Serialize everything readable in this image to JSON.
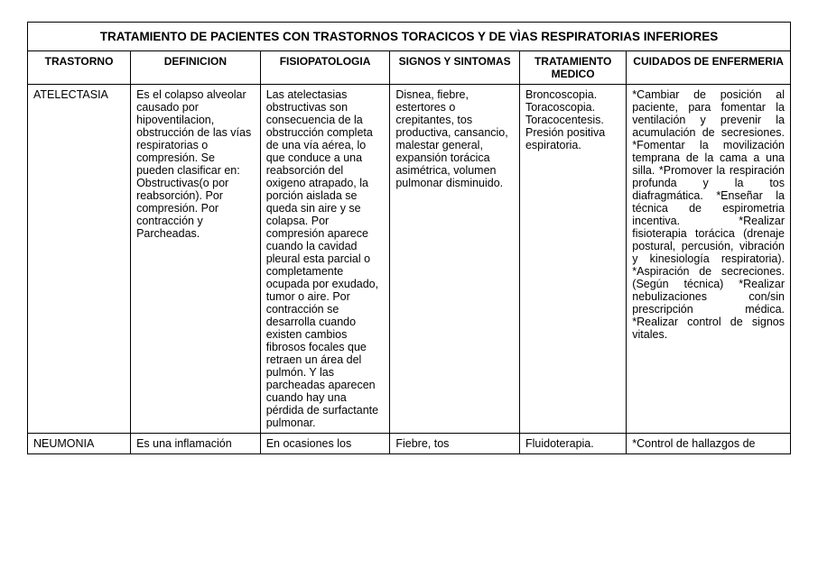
{
  "table": {
    "title": "TRATAMIENTO DE PACIENTES CON TRASTORNOS TORACICOS Y DE VÌAS RESPIRATORIAS INFERIORES",
    "headers": {
      "trastorno": "TRASTORNO",
      "definicion": "DEFINICION",
      "fisiopatologia": "FISIOPATOLOGIA",
      "signos": "SIGNOS Y SINTOMAS",
      "tratamiento": "TRATAMIENTO MEDICO",
      "cuidados": "CUIDADOS DE ENFERMERIA"
    },
    "rows": [
      {
        "trastorno": "ATELECTASIA",
        "definicion": "Es el colapso alveolar causado por hipoventilacion, obstrucción de las vías respiratorias o compresión.\nSe pueden clasificar en:\nObstructivas(o por reabsorción).\nPor compresión.\nPor contracción y Parcheadas.",
        "fisiopatologia": "Las atelectasias obstructivas son consecuencia de la obstrucción completa de una vía aérea, lo que conduce a una reabsorción del oxigeno atrapado, la porción aislada se queda sin aire y se colapsa.\nPor compresión aparece cuando la cavidad pleural esta parcial o completamente ocupada por exudado, tumor o aire.\nPor contracción se desarrolla cuando existen cambios fibrosos focales que retraen un área del pulmón.\nY las parcheadas aparecen cuando hay una pérdida de surfactante pulmonar.",
        "signos": "Disnea, fiebre, estertores o crepitantes, tos productiva, cansancio, malestar general, expansión torácica asimétrica, volumen pulmonar disminuido.",
        "tratamiento": "Broncoscopia.\nToracoscopia.\nToracocentesis.\nPresión positiva espiratoria.",
        "cuidados": "*Cambiar de posición al paciente, para fomentar la ventilación y prevenir la acumulación de secresiones.\n*Fomentar la movilización temprana de la cama a una silla.\n*Promover la respiración profunda y la tos diafragmática.\n*Enseñar la técnica de espirometria incentiva.\n*Realizar fisioterapia torácica (drenaje postural, percusión, vibración y kinesiología respiratoria).\n*Aspiración de secreciones.(Según técnica)\n*Realizar nebulizaciones con/sin prescripción médica.\n*Realizar control de signos vitales."
      },
      {
        "trastorno": "NEUMONIA",
        "definicion": "Es una inflamación",
        "fisiopatologia": "En ocasiones los",
        "signos": "Fiebre, tos",
        "tratamiento": "Fluidoterapia.",
        "cuidados": "*Control de hallazgos de"
      }
    ]
  }
}
